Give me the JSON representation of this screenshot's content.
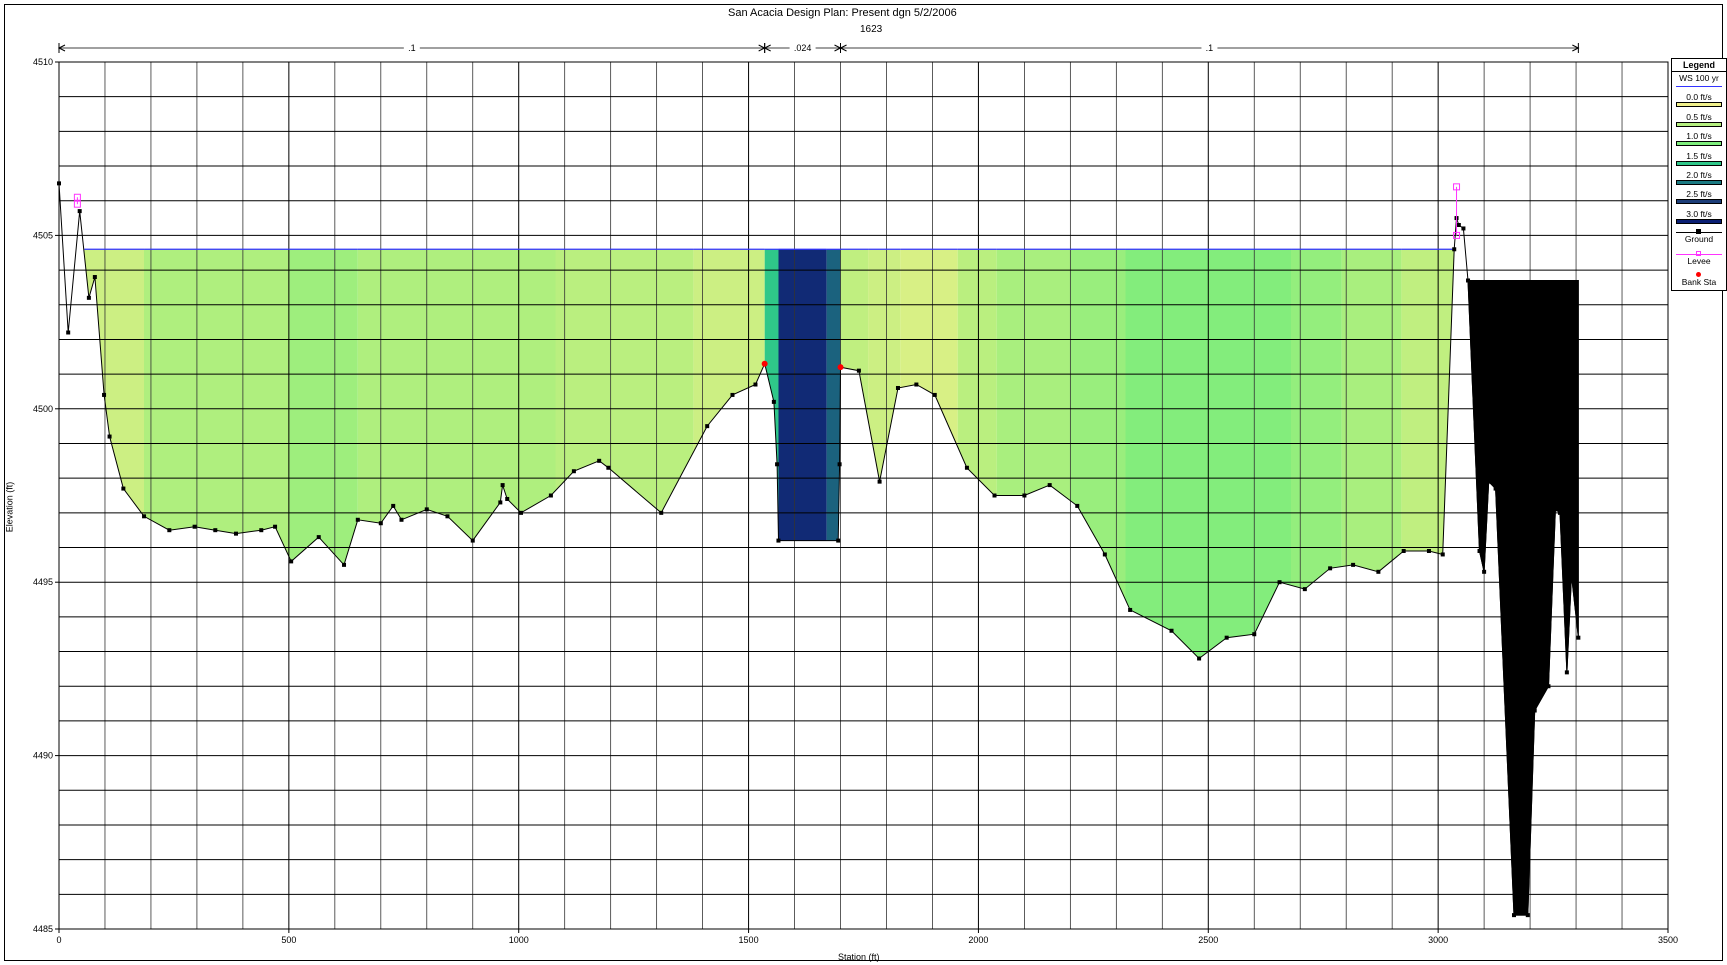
{
  "chart_data": {
    "type": "area",
    "title": "San Acacia Design      Plan: Present dgn     5/2/2006",
    "subtitle": "1623",
    "xlabel": "Station (ft)",
    "ylabel": "Elevation (ft)",
    "xlim": [
      0,
      3500
    ],
    "ylim": [
      4485,
      4510
    ],
    "xticks": [
      0,
      500,
      1000,
      1500,
      2000,
      2500,
      3000,
      3500
    ],
    "yticks": [
      4485,
      4490,
      4495,
      4500,
      4505,
      4510
    ],
    "grid": true,
    "legend_position": "right",
    "water_surface": {
      "name": "WS 100 yr",
      "elevation": 4504.6,
      "x_start": 55,
      "x_end": 3035
    },
    "ground": [
      [
        0,
        4506.5
      ],
      [
        20,
        4502.2
      ],
      [
        45,
        4505.7
      ],
      [
        65,
        4503.2
      ],
      [
        78,
        4503.8
      ],
      [
        98,
        4500.4
      ],
      [
        110,
        4499.2
      ],
      [
        140,
        4497.7
      ],
      [
        185,
        4496.9
      ],
      [
        240,
        4496.5
      ],
      [
        295,
        4496.6
      ],
      [
        340,
        4496.5
      ],
      [
        385,
        4496.4
      ],
      [
        440,
        4496.5
      ],
      [
        470,
        4496.6
      ],
      [
        505,
        4495.6
      ],
      [
        565,
        4496.3
      ],
      [
        620,
        4495.5
      ],
      [
        650,
        4496.8
      ],
      [
        700,
        4496.7
      ],
      [
        727,
        4497.2
      ],
      [
        745,
        4496.8
      ],
      [
        800,
        4497.1
      ],
      [
        845,
        4496.9
      ],
      [
        900,
        4496.2
      ],
      [
        960,
        4497.3
      ],
      [
        965,
        4497.8
      ],
      [
        975,
        4497.4
      ],
      [
        1005,
        4497.0
      ],
      [
        1070,
        4497.5
      ],
      [
        1120,
        4498.2
      ],
      [
        1175,
        4498.5
      ],
      [
        1195,
        4498.3
      ],
      [
        1310,
        4497.0
      ],
      [
        1410,
        4499.5
      ],
      [
        1465,
        4500.4
      ],
      [
        1515,
        4500.7
      ],
      [
        1535,
        4501.3
      ],
      [
        1555,
        4500.2
      ],
      [
        1562,
        4498.4
      ],
      [
        1565,
        4496.2
      ],
      [
        1695,
        4496.2
      ],
      [
        1698,
        4498.4
      ],
      [
        1700,
        4501.2
      ],
      [
        1740,
        4501.1
      ],
      [
        1785,
        4497.9
      ],
      [
        1825,
        4500.6
      ],
      [
        1865,
        4500.7
      ],
      [
        1905,
        4500.4
      ],
      [
        1975,
        4498.3
      ],
      [
        2035,
        4497.5
      ],
      [
        2100,
        4497.5
      ],
      [
        2155,
        4497.8
      ],
      [
        2215,
        4497.2
      ],
      [
        2275,
        4495.8
      ],
      [
        2330,
        4494.2
      ],
      [
        2420,
        4493.6
      ],
      [
        2480,
        4492.8
      ],
      [
        2540,
        4493.4
      ],
      [
        2600,
        4493.5
      ],
      [
        2655,
        4495.0
      ],
      [
        2710,
        4494.8
      ],
      [
        2765,
        4495.4
      ],
      [
        2815,
        4495.5
      ],
      [
        2870,
        4495.3
      ],
      [
        2925,
        4495.9
      ],
      [
        2980,
        4495.9
      ],
      [
        3010,
        4495.8
      ],
      [
        3035,
        4504.6
      ],
      [
        3040,
        4505.5
      ],
      [
        3045,
        4505.3
      ],
      [
        3055,
        4505.2
      ],
      [
        3065,
        4503.7
      ],
      [
        3090,
        4495.9
      ],
      [
        3100,
        4495.3
      ],
      [
        3110,
        4497.9
      ],
      [
        3125,
        4497.7
      ],
      [
        3165,
        4485.4
      ],
      [
        3195,
        4485.4
      ],
      [
        3210,
        4491.3
      ],
      [
        3240,
        4492.0
      ],
      [
        3255,
        4497.1
      ],
      [
        3265,
        4497.0
      ],
      [
        3280,
        4492.4
      ],
      [
        3290,
        4495.2
      ],
      [
        3305,
        4493.4
      ]
    ],
    "velocity_bands": [
      {
        "x0": 55,
        "x1": 185,
        "v": 0.3
      },
      {
        "x0": 185,
        "x1": 500,
        "v": 0.55
      },
      {
        "x0": 500,
        "x1": 650,
        "v": 0.7
      },
      {
        "x0": 650,
        "x1": 1080,
        "v": 0.55
      },
      {
        "x0": 1080,
        "x1": 1380,
        "v": 0.45
      },
      {
        "x0": 1380,
        "x1": 1535,
        "v": 0.3
      },
      {
        "x0": 1535,
        "x1": 1565,
        "v": 1.5
      },
      {
        "x0": 1565,
        "x1": 1670,
        "v": 2.8
      },
      {
        "x0": 1670,
        "x1": 1700,
        "v": 2.2
      },
      {
        "x0": 1700,
        "x1": 1760,
        "v": 0.4
      },
      {
        "x0": 1760,
        "x1": 1830,
        "v": 0.3
      },
      {
        "x0": 1830,
        "x1": 1955,
        "v": 0.2
      },
      {
        "x0": 1955,
        "x1": 2040,
        "v": 0.45
      },
      {
        "x0": 2040,
        "x1": 2200,
        "v": 0.6
      },
      {
        "x0": 2200,
        "x1": 2320,
        "v": 0.75
      },
      {
        "x0": 2320,
        "x1": 2680,
        "v": 0.95
      },
      {
        "x0": 2680,
        "x1": 2790,
        "v": 0.8
      },
      {
        "x0": 2790,
        "x1": 2920,
        "v": 0.6
      },
      {
        "x0": 2920,
        "x1": 3035,
        "v": 0.4
      }
    ],
    "ineffective_block": {
      "x0": 3065,
      "x1": 3305,
      "top": 4503.7
    },
    "levees": [
      {
        "x": 40,
        "y_top": 4506.1,
        "y_bot": 4505.9
      },
      {
        "x": 3040,
        "y_top": 4506.4,
        "y_bot": 4505.0
      }
    ],
    "bank_stations": [
      [
        1535,
        4501.3
      ],
      [
        1700,
        4501.2
      ]
    ],
    "manning_n": [
      {
        "x0": 0,
        "x1": 1535,
        "label": ".1"
      },
      {
        "x0": 1535,
        "x1": 1700,
        "label": ".024"
      },
      {
        "x0": 1700,
        "x1": 3305,
        "label": ".1"
      }
    ],
    "legend": [
      {
        "label": "WS 100 yr",
        "kind": "line",
        "color": "#3333ff"
      },
      {
        "label": "0.0 ft/s",
        "kind": "swatch",
        "color": "#f0f08a"
      },
      {
        "label": "0.5 ft/s",
        "kind": "swatch",
        "color": "#b4ef7e"
      },
      {
        "label": "1.0 ft/s",
        "kind": "swatch",
        "color": "#7eed7c"
      },
      {
        "label": "1.5 ft/s",
        "kind": "swatch",
        "color": "#2fc789"
      },
      {
        "label": "2.0 ft/s",
        "kind": "swatch",
        "color": "#1a7a82"
      },
      {
        "label": "2.5 ft/s",
        "kind": "swatch",
        "color": "#1c3d78"
      },
      {
        "label": "3.0 ft/s",
        "kind": "swatch",
        "color": "#0a1e73"
      },
      {
        "label": "Ground",
        "kind": "marker-line",
        "color": "#000000"
      },
      {
        "label": "Levee",
        "kind": "levee",
        "color": "#ff33ff"
      },
      {
        "label": "Bank Sta",
        "kind": "dot",
        "color": "#ff0000"
      }
    ],
    "legend_title": "Legend"
  }
}
